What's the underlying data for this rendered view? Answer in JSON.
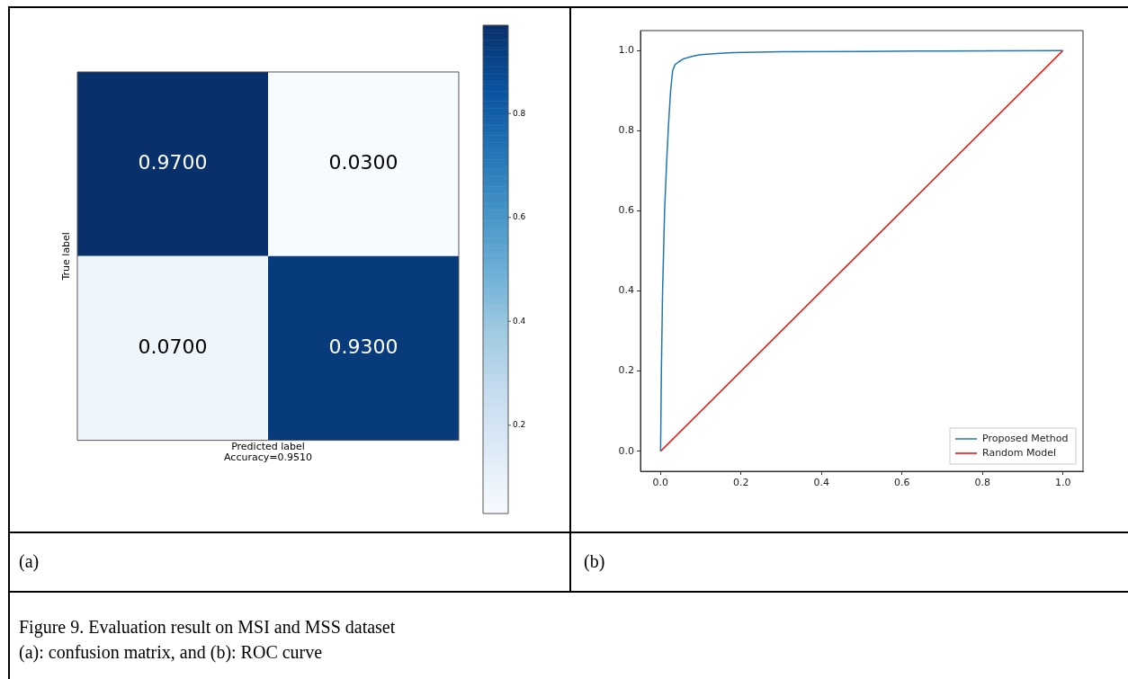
{
  "chart_data": [
    {
      "type": "heatmap",
      "categories": [
        null,
        null
      ],
      "y_categories": [
        null,
        null
      ],
      "cells": [
        [
          0.97,
          0.03
        ],
        [
          0.07,
          0.93
        ]
      ],
      "cell_labels": [
        [
          "0.9700",
          "0.0300"
        ],
        [
          "0.0700",
          "0.9300"
        ]
      ],
      "clim": [
        0.03,
        0.97
      ],
      "cticks": [
        0.2,
        0.4,
        0.6,
        0.8
      ],
      "xlabel": "Predicted label",
      "ylabel": "True label",
      "annotations": [
        "Accuracy=0.9510",
        "(a)"
      ]
    },
    {
      "type": "line",
      "xlim": [
        -0.05,
        1.05
      ],
      "ylim": [
        -0.05,
        1.05
      ],
      "xticks": [
        {
          "value": 0,
          "label": "0.0"
        },
        0.2,
        0.4,
        0.6,
        0.8,
        {
          "value": 1,
          "label": "1.0"
        }
      ],
      "yticks": [
        {
          "value": 0,
          "label": "0.0"
        },
        0.2,
        0.4,
        0.6,
        0.8,
        {
          "value": 1,
          "label": "1.0"
        }
      ],
      "grid": false,
      "legend": "bottom right",
      "marker": "none",
      "line_style": "solid",
      "series": [
        {
          "name": "Proposed Method",
          "color": "#1f77b4",
          "x": [
            0,
            0.002,
            0.005,
            0.01,
            0.015,
            0.02,
            0.025,
            0.03,
            0.036,
            0.045,
            0.058,
            0.08,
            0.1,
            0.14,
            0.18,
            0.3,
            0.5,
            0.7,
            1.0
          ],
          "values": [
            0,
            0.2,
            0.4,
            0.6,
            0.72,
            0.82,
            0.9,
            0.95,
            0.965,
            0.972,
            0.98,
            0.986,
            0.99,
            0.993,
            0.995,
            0.997,
            0.998,
            0.999,
            1.0
          ]
        },
        {
          "name": "Random Model",
          "color": "#ff0000",
          "x": [
            0,
            1
          ],
          "values": [
            0,
            1
          ]
        }
      ],
      "annotations": [
        "(b)",
        "Figure 9. Evaluation result on MSI and MSS dataset",
        "(a): confusion matrix, and (b): ROC curve"
      ]
    }
  ]
}
